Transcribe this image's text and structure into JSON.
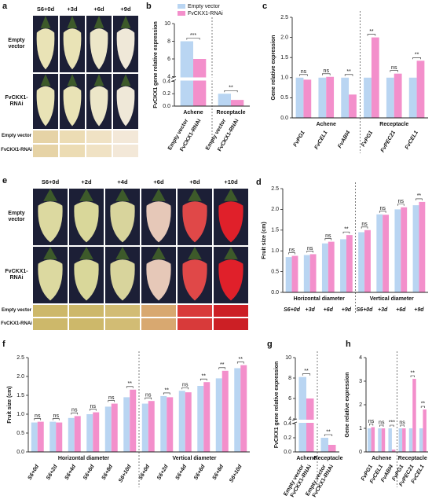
{
  "photo_panels": [
    {
      "label": "a",
      "columns": [
        "S6+0d",
        "+3d",
        "+6d",
        "+9d"
      ],
      "rows": [
        "Empty vector",
        "FvCKX1-RNAi",
        "Empty vector",
        "FvCKX1-RNAi"
      ]
    },
    {
      "label": "e",
      "columns": [
        "S6+0d",
        "+2d",
        "+4d",
        "+6d",
        "+8d",
        "+10d"
      ],
      "rows": [
        "Empty vector",
        "FvCKX1-RNAi",
        "Empty vector",
        "FvCKX1-RNAi"
      ]
    }
  ],
  "chart_data": [
    {
      "type": "bar",
      "label": "b",
      "ylabel": "FvCKX1 gene relative expression",
      "legend": "top",
      "groups": [
        {
          "name": "Achene"
        },
        {
          "name": "Receptacle"
        }
      ],
      "series": [
        {
          "name": "Empty vector",
          "color": "#b9d5f2",
          "values": [
            8.0,
            0.2
          ]
        },
        {
          "name": "FvCKX1-RNAi",
          "color": "#f38fcb",
          "values": [
            6.0,
            0.1
          ]
        }
      ],
      "significance": [
        "***",
        "**"
      ],
      "ylim": [
        0,
        10
      ],
      "ybreak": [
        0.4,
        4
      ],
      "yticks": [
        {
          "value": 0,
          "label": "0.0"
        },
        0.2,
        0.4,
        4,
        6,
        8,
        10
      ],
      "xlabel_rotation": -60
    },
    {
      "type": "bar",
      "label": "c",
      "ylabel": "Gene relative expression",
      "groups": [
        {
          "name": "Achene",
          "categories": [
            "FvPG1",
            "FvCEL1",
            "FvABI4"
          ]
        },
        {
          "name": "Receptacle",
          "categories": [
            "FvPG1",
            "FvPEC21",
            "FvCEL1"
          ]
        }
      ],
      "series": [
        {
          "name": "Empty vector",
          "color": "#b9d5f2",
          "values": [
            1,
            1,
            1,
            1,
            1,
            1
          ]
        },
        {
          "name": "FvCKX1-RNAi",
          "color": "#f38fcb",
          "values": [
            0.95,
            1.02,
            0.58,
            2.0,
            1.1,
            1.42
          ]
        }
      ],
      "significance": [
        "ns",
        "ns",
        "**",
        "**",
        "ns",
        "**"
      ],
      "ylim": [
        0,
        2.5
      ],
      "yticks": [
        {
          "value": 0,
          "label": "0.0"
        },
        0.5,
        {
          "value": 1,
          "label": "1.0"
        },
        1.5,
        {
          "value": 2,
          "label": "2.0"
        },
        2.5
      ],
      "xlabel_rotation": -60
    },
    {
      "type": "bar",
      "label": "d",
      "ylabel": "Fruit size (cm)",
      "groups": [
        {
          "name": "Horizontal diameter",
          "categories": [
            "S6+0d",
            "+3d",
            "+6d",
            "+9d"
          ]
        },
        {
          "name": "Vertical diameter",
          "categories": [
            "S6+0d",
            "+3d",
            "+6d",
            "+9d"
          ]
        }
      ],
      "series": [
        {
          "name": "Empty vector",
          "color": "#b9d5f2",
          "values": [
            0.85,
            0.9,
            1.18,
            1.28,
            1.45,
            1.88,
            2.0,
            2.1
          ]
        },
        {
          "name": "FvCKX1-RNAi",
          "color": "#f38fcb",
          "values": [
            0.88,
            0.92,
            1.22,
            1.38,
            1.5,
            1.87,
            2.05,
            2.18
          ]
        }
      ],
      "significance": [
        "ns",
        "ns",
        "ns",
        "**",
        "ns",
        "ns",
        "ns",
        "**"
      ],
      "ylim": [
        0,
        2.5
      ],
      "yticks": [
        {
          "value": 0,
          "label": "0.0"
        },
        0.5,
        {
          "value": 1,
          "label": "1.0"
        },
        1.5,
        {
          "value": 2,
          "label": "2.0"
        },
        2.5
      ],
      "xlabel_rotation": 0
    },
    {
      "type": "bar",
      "label": "f",
      "ylabel": "Fruit size (cm)",
      "groups": [
        {
          "name": "Horizontal diameter",
          "categories": [
            "S6+0d",
            "S6+2d",
            "S6+4d",
            "S6+6d",
            "S6+8d",
            "S6+10d"
          ]
        },
        {
          "name": "Vertical diameter",
          "categories": [
            "S6+0d",
            "S6+2d",
            "S6+4d",
            "S6+6d",
            "S6+8d",
            "S6+10d"
          ]
        }
      ],
      "series": [
        {
          "name": "Empty vector",
          "color": "#b9d5f2",
          "values": [
            0.78,
            0.8,
            0.9,
            1.0,
            1.2,
            1.45,
            1.28,
            1.48,
            1.62,
            1.75,
            1.95,
            2.22
          ]
        },
        {
          "name": "FvCKX1-RNAi",
          "color": "#f38fcb",
          "values": [
            0.8,
            0.78,
            0.95,
            1.05,
            1.28,
            1.65,
            1.35,
            1.45,
            1.58,
            1.85,
            2.15,
            2.3
          ]
        }
      ],
      "significance": [
        "ns",
        "ns",
        "ns",
        "ns",
        "ns",
        "**",
        "ns",
        "**",
        "ns",
        "**",
        "**",
        "**"
      ],
      "ylim": [
        0,
        2.5
      ],
      "yticks": [
        {
          "value": 0,
          "label": "0.0"
        },
        0.5,
        {
          "value": 1,
          "label": "1.0"
        },
        1.5,
        {
          "value": 2,
          "label": "2.0"
        },
        2.5
      ],
      "xlabel_rotation": -60
    },
    {
      "type": "bar",
      "label": "g",
      "ylabel": "FvCKX1 gene relative expression",
      "groups": [
        {
          "name": "Achene"
        },
        {
          "name": "Receptacle"
        }
      ],
      "series": [
        {
          "name": "Empty vector",
          "color": "#b9d5f2",
          "values": [
            8.1,
            0.2
          ]
        },
        {
          "name": "FvCKX1-RNAi",
          "color": "#f38fcb",
          "values": [
            6.0,
            0.1
          ]
        }
      ],
      "significance": [
        "**",
        "**"
      ],
      "ylim": [
        0,
        10
      ],
      "ybreak": [
        0.4,
        4
      ],
      "yticks": [
        {
          "value": 0,
          "label": "0.0"
        },
        0.2,
        0.4,
        4,
        6,
        8,
        10
      ],
      "xlabel_rotation": -60
    },
    {
      "type": "bar",
      "label": "h",
      "ylabel": "Gene relative expression",
      "groups": [
        {
          "name": "Achene",
          "categories": [
            "FvPG1",
            "FvCEL1",
            "FvABI4"
          ]
        },
        {
          "name": "Receptacle",
          "categories": [
            "FvPG1",
            "FvPEC21",
            "FvCEL1"
          ]
        }
      ],
      "series": [
        {
          "name": "Empty vector",
          "color": "#b9d5f2",
          "values": [
            1,
            1,
            1,
            1,
            1,
            1
          ]
        },
        {
          "name": "FvCKX1-RNAi",
          "color": "#f38fcb",
          "values": [
            1.05,
            1.0,
            0.1,
            1.0,
            3.1,
            1.8
          ]
        }
      ],
      "significance": [
        "ns",
        "ns",
        "***",
        "ns",
        "**",
        "**"
      ],
      "ylim": [
        0,
        4
      ],
      "yticks": [
        0,
        1,
        2,
        3,
        4
      ],
      "xlabel_rotation": -60
    }
  ]
}
